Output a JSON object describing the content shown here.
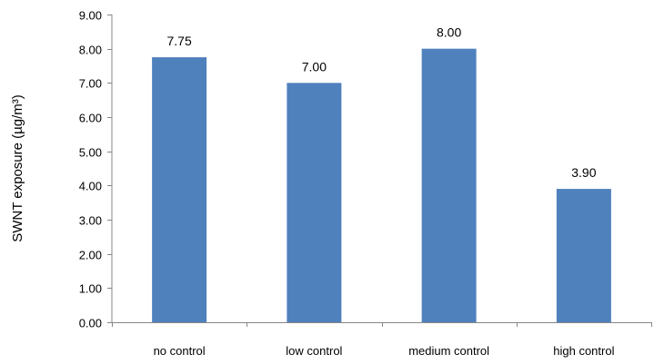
{
  "chart_data": {
    "type": "bar",
    "title": "",
    "xlabel": "",
    "ylabel": "SWNT   exposure (µg/m³)",
    "categories": [
      "no control",
      "low control",
      "medium control",
      "high control"
    ],
    "values": [
      7.75,
      7.0,
      8.0,
      3.9
    ],
    "data_labels": [
      "7.75",
      "7.00",
      "8.00",
      "3.90"
    ],
    "ylim": [
      0,
      9
    ],
    "yticks": [
      "0.00",
      "1.00",
      "2.00",
      "3.00",
      "4.00",
      "5.00",
      "6.00",
      "7.00",
      "8.00",
      "9.00"
    ],
    "grid": false,
    "legend": "none",
    "bar_color": "#4f81bd"
  }
}
